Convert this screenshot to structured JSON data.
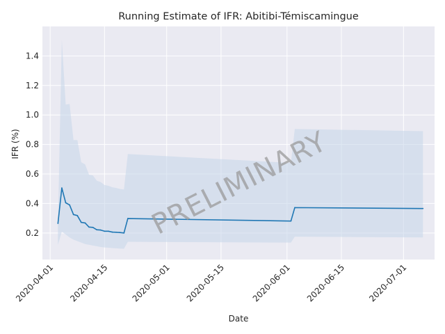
{
  "chart_data": {
    "type": "line",
    "title": "Running Estimate of IFR: Abitibi-Témiscamingue",
    "xlabel": "Date",
    "ylabel": "IFR (%)",
    "x_axis": "date",
    "xlim": [
      "2020-03-30",
      "2020-07-09"
    ],
    "ylim": [
      0.02,
      1.6
    ],
    "x_ticks": [
      "2020-04-01",
      "2020-04-15",
      "2020-05-01",
      "2020-05-15",
      "2020-06-01",
      "2020-06-15",
      "2020-07-01"
    ],
    "y_ticks": [
      0.2,
      0.4,
      0.6,
      0.8,
      1.0,
      1.2,
      1.4
    ],
    "grid": true,
    "watermark": "PRELIMINARY",
    "colors": {
      "background": "#eaeaf2",
      "grid": "#ffffff",
      "line": "#1f77b4",
      "band": "#c5d6ea"
    },
    "series": [
      {
        "values": [
          {
            "x": "2020-04-03",
            "y": 0.265
          },
          {
            "x": "2020-04-04",
            "y": 0.505
          },
          {
            "x": "2020-04-05",
            "y": 0.405
          },
          {
            "x": "2020-04-06",
            "y": 0.39
          },
          {
            "x": "2020-04-07",
            "y": 0.325
          },
          {
            "x": "2020-04-08",
            "y": 0.318
          },
          {
            "x": "2020-04-09",
            "y": 0.272
          },
          {
            "x": "2020-04-10",
            "y": 0.268
          },
          {
            "x": "2020-04-11",
            "y": 0.24
          },
          {
            "x": "2020-04-12",
            "y": 0.238
          },
          {
            "x": "2020-04-13",
            "y": 0.222
          },
          {
            "x": "2020-04-14",
            "y": 0.22
          },
          {
            "x": "2020-04-15",
            "y": 0.212
          },
          {
            "x": "2020-04-16",
            "y": 0.212
          },
          {
            "x": "2020-04-17",
            "y": 0.206
          },
          {
            "x": "2020-04-18",
            "y": 0.205
          },
          {
            "x": "2020-04-19",
            "y": 0.203
          },
          {
            "x": "2020-04-20",
            "y": 0.2
          },
          {
            "x": "2020-04-21",
            "y": 0.298
          },
          {
            "x": "2020-06-02",
            "y": 0.281
          },
          {
            "x": "2020-06-03",
            "y": 0.372
          },
          {
            "x": "2020-07-06",
            "y": 0.366
          }
        ]
      }
    ],
    "band": [
      {
        "x": "2020-04-03",
        "lo": 0.12,
        "hi": 0.26
      },
      {
        "x": "2020-04-04",
        "lo": 0.21,
        "hi": 1.51
      },
      {
        "x": "2020-04-05",
        "lo": 0.19,
        "hi": 1.07
      },
      {
        "x": "2020-04-06",
        "lo": 0.17,
        "hi": 1.075
      },
      {
        "x": "2020-04-07",
        "lo": 0.155,
        "hi": 0.83
      },
      {
        "x": "2020-04-08",
        "lo": 0.145,
        "hi": 0.83
      },
      {
        "x": "2020-04-09",
        "lo": 0.135,
        "hi": 0.68
      },
      {
        "x": "2020-04-10",
        "lo": 0.125,
        "hi": 0.665
      },
      {
        "x": "2020-04-11",
        "lo": 0.12,
        "hi": 0.595
      },
      {
        "x": "2020-04-12",
        "lo": 0.115,
        "hi": 0.59
      },
      {
        "x": "2020-04-13",
        "lo": 0.11,
        "hi": 0.555
      },
      {
        "x": "2020-04-14",
        "lo": 0.105,
        "hi": 0.545
      },
      {
        "x": "2020-04-15",
        "lo": 0.102,
        "hi": 0.525
      },
      {
        "x": "2020-04-16",
        "lo": 0.1,
        "hi": 0.52
      },
      {
        "x": "2020-04-17",
        "lo": 0.098,
        "hi": 0.51
      },
      {
        "x": "2020-04-18",
        "lo": 0.096,
        "hi": 0.505
      },
      {
        "x": "2020-04-19",
        "lo": 0.094,
        "hi": 0.498
      },
      {
        "x": "2020-04-20",
        "lo": 0.093,
        "hi": 0.495
      },
      {
        "x": "2020-04-21",
        "lo": 0.14,
        "hi": 0.735
      },
      {
        "x": "2020-06-02",
        "lo": 0.135,
        "hi": 0.675
      },
      {
        "x": "2020-06-03",
        "lo": 0.175,
        "hi": 0.905
      },
      {
        "x": "2020-07-06",
        "lo": 0.17,
        "hi": 0.89
      }
    ]
  }
}
